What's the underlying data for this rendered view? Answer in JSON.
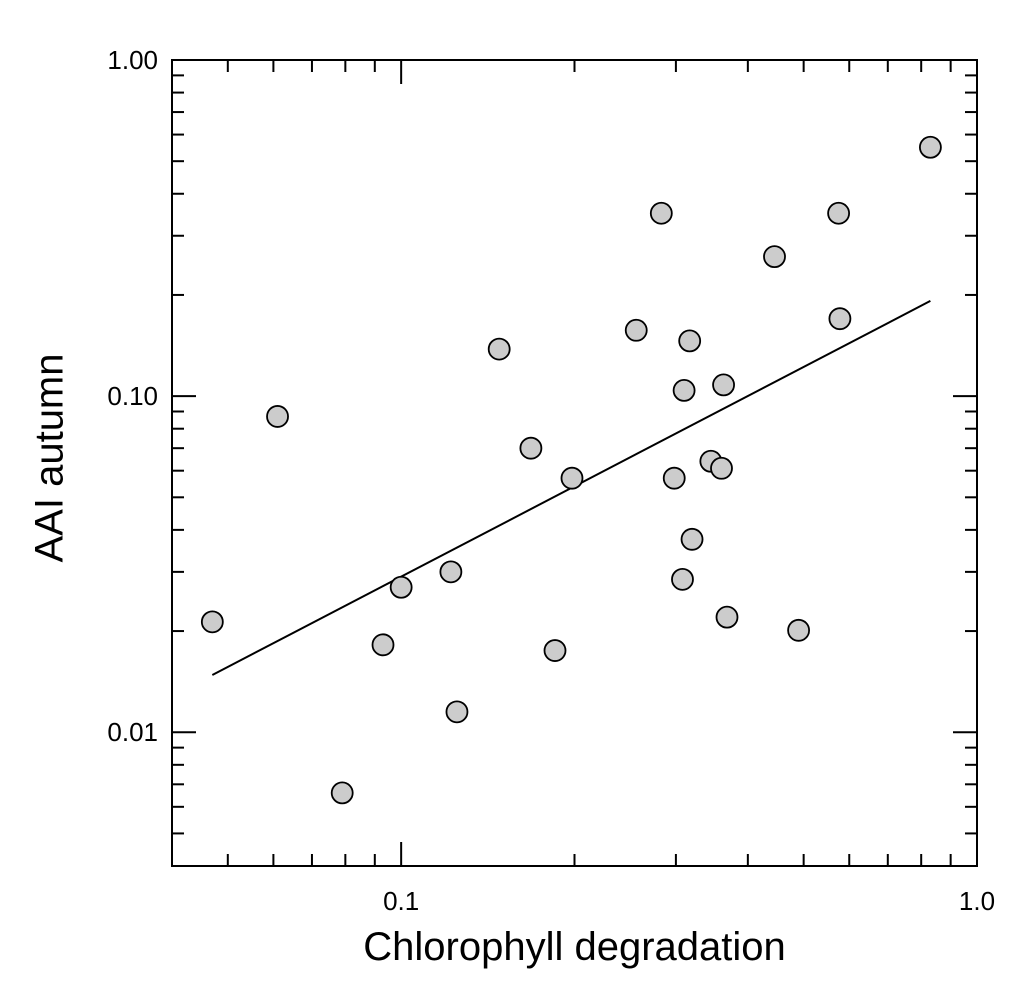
{
  "chart_data": {
    "type": "scatter",
    "title": "",
    "xlabel": "Chlorophyll degradation",
    "ylabel": "AAI autumn",
    "xscale": "log",
    "yscale": "log",
    "xlim": [
      0.04,
      1.0
    ],
    "ylim": [
      0.004,
      1.0
    ],
    "grid": false,
    "legend": "none",
    "x_tick_labels": [
      {
        "value": 0.1,
        "label": "0.1"
      },
      {
        "value": 1.0,
        "label": "1.0"
      }
    ],
    "y_tick_labels": [
      {
        "value": 0.01,
        "label": "0.01"
      },
      {
        "value": 0.1,
        "label": "0.10"
      },
      {
        "value": 1.0,
        "label": "1.00"
      }
    ],
    "marker_fill": "#cccccc",
    "marker_edge": "#000000",
    "points": [
      {
        "x": 0.047,
        "y": 0.0213
      },
      {
        "x": 0.061,
        "y": 0.087
      },
      {
        "x": 0.079,
        "y": 0.0066
      },
      {
        "x": 0.093,
        "y": 0.0182
      },
      {
        "x": 0.1,
        "y": 0.027
      },
      {
        "x": 0.122,
        "y": 0.03
      },
      {
        "x": 0.125,
        "y": 0.0115
      },
      {
        "x": 0.148,
        "y": 0.138
      },
      {
        "x": 0.168,
        "y": 0.07
      },
      {
        "x": 0.185,
        "y": 0.0175
      },
      {
        "x": 0.198,
        "y": 0.057
      },
      {
        "x": 0.256,
        "y": 0.157
      },
      {
        "x": 0.283,
        "y": 0.35
      },
      {
        "x": 0.298,
        "y": 0.057
      },
      {
        "x": 0.308,
        "y": 0.0285
      },
      {
        "x": 0.31,
        "y": 0.104
      },
      {
        "x": 0.317,
        "y": 0.146
      },
      {
        "x": 0.32,
        "y": 0.0375
      },
      {
        "x": 0.345,
        "y": 0.064
      },
      {
        "x": 0.36,
        "y": 0.061
      },
      {
        "x": 0.363,
        "y": 0.108
      },
      {
        "x": 0.368,
        "y": 0.022
      },
      {
        "x": 0.445,
        "y": 0.26
      },
      {
        "x": 0.49,
        "y": 0.0201
      },
      {
        "x": 0.575,
        "y": 0.35
      },
      {
        "x": 0.578,
        "y": 0.17
      },
      {
        "x": 0.83,
        "y": 0.55
      }
    ],
    "fit_line": {
      "x": [
        0.047,
        0.83
      ],
      "y": [
        0.0148,
        0.192
      ]
    }
  }
}
